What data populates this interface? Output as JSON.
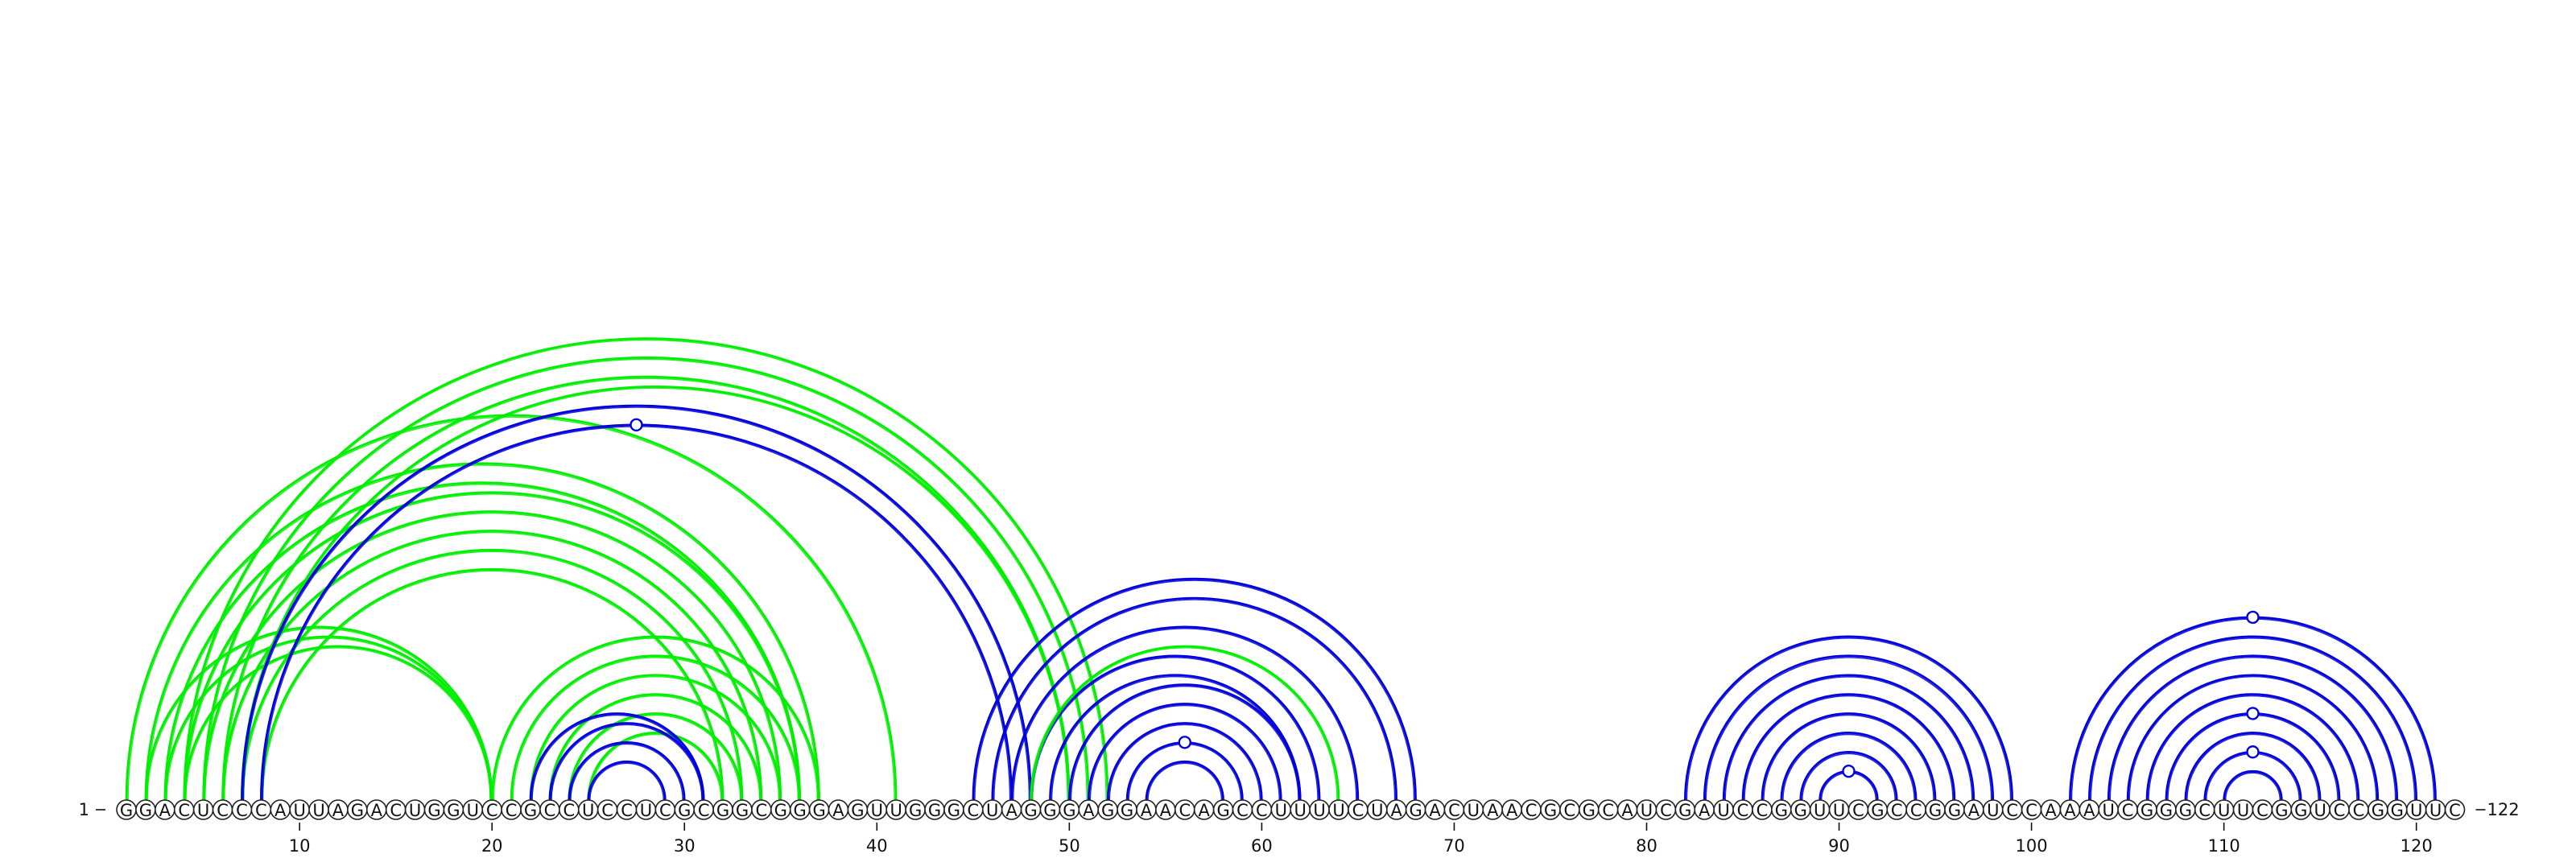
{
  "sequence": "GGACUCCCAUUAGACUGGUCCGCCUCCUCGCGGCGGGAGUUGGGCUAGGGAGGAACAGCCUUUUCUAGACUAACGCGCAUCGAUCCGGUUCGCCGGAUCCAAAUCGGGCUUCGGUCCGGUUC",
  "start_label": "1",
  "end_label": "122",
  "ticks": [
    10,
    20,
    30,
    40,
    50,
    60,
    70,
    80,
    90,
    100,
    110,
    120
  ],
  "colors": {
    "green": "#00ee00",
    "blue": "#0000dd",
    "text": "#111111"
  },
  "arc_groups": [
    {
      "color": "green",
      "pairs": [
        [
          1,
          41
        ],
        [
          2,
          37
        ],
        [
          3,
          36
        ],
        [
          4,
          36
        ],
        [
          5,
          35
        ],
        [
          6,
          34
        ],
        [
          7,
          33
        ],
        [
          8,
          32
        ]
      ]
    },
    {
      "color": "green",
      "pairs": [
        [
          2,
          20
        ],
        [
          3,
          20
        ],
        [
          4,
          20
        ]
      ]
    },
    {
      "color": "green",
      "pairs": [
        [
          4,
          52
        ],
        [
          5,
          51
        ],
        [
          6,
          50
        ],
        [
          7,
          50
        ]
      ]
    },
    {
      "color": "blue",
      "pairs": [
        [
          7,
          48
        ],
        [
          8,
          47
        ]
      ]
    },
    {
      "color": "green",
      "pairs": [
        [
          20,
          37
        ],
        [
          21,
          36
        ],
        [
          22,
          35
        ],
        [
          23,
          34
        ],
        [
          24,
          33
        ],
        [
          25,
          32
        ]
      ]
    },
    {
      "color": "blue",
      "pairs": [
        [
          22,
          31
        ],
        [
          23,
          31
        ],
        [
          24,
          30
        ],
        [
          25,
          29
        ]
      ]
    },
    {
      "color": "blue",
      "pairs": [
        [
          45,
          68
        ],
        [
          46,
          67
        ],
        [
          47,
          65
        ],
        [
          48,
          63
        ],
        [
          49,
          62
        ],
        [
          50,
          62
        ],
        [
          51,
          61
        ],
        [
          52,
          60
        ],
        [
          53,
          59
        ],
        [
          54,
          58
        ]
      ]
    },
    {
      "color": "green",
      "pairs": [
        [
          48,
          64
        ]
      ]
    },
    {
      "color": "blue",
      "pairs": [
        [
          82,
          99
        ],
        [
          83,
          98
        ],
        [
          84,
          97
        ],
        [
          85,
          96
        ],
        [
          86,
          95
        ],
        [
          87,
          94
        ],
        [
          88,
          93
        ],
        [
          89,
          92
        ]
      ]
    },
    {
      "color": "blue",
      "pairs": [
        [
          102,
          121
        ],
        [
          103,
          120
        ],
        [
          104,
          119
        ],
        [
          105,
          118
        ],
        [
          106,
          117
        ],
        [
          107,
          116
        ],
        [
          108,
          115
        ],
        [
          109,
          114
        ],
        [
          110,
          113
        ]
      ]
    }
  ],
  "markers": [
    {
      "i": 8,
      "j": 47,
      "color": "blue"
    },
    {
      "i": 53,
      "j": 59,
      "color": "blue"
    },
    {
      "i": 89,
      "j": 92,
      "color": "blue"
    },
    {
      "i": 102,
      "j": 121,
      "color": "blue"
    },
    {
      "i": 107,
      "j": 116,
      "color": "blue"
    },
    {
      "i": 109,
      "j": 114,
      "color": "blue"
    }
  ]
}
